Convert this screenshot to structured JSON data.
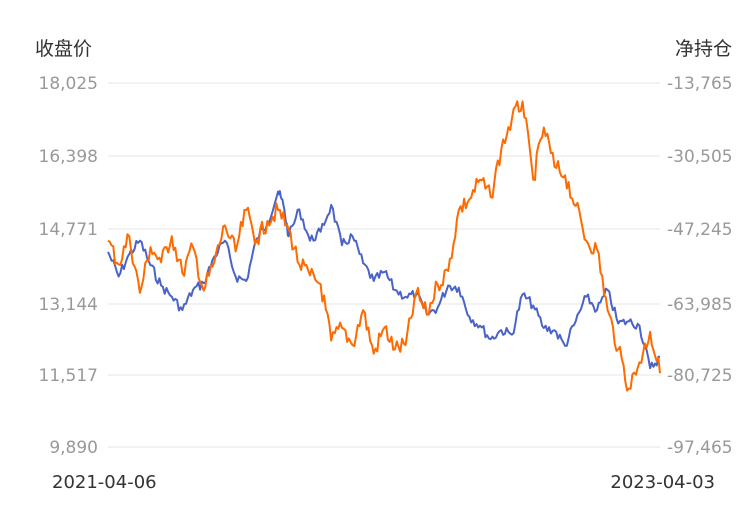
{
  "chart_data": {
    "type": "line",
    "left_axis": {
      "title": "收盘价",
      "ticks": [
        "18,025",
        "16,398",
        "14,771",
        "13,144",
        "11,517",
        "9,890"
      ],
      "range": [
        9890,
        18025
      ]
    },
    "right_axis": {
      "title": "净持仓",
      "ticks": [
        "-13,765",
        "-30,505",
        "-47,245",
        "-63,985",
        "-80,725",
        "-97,465"
      ],
      "range": [
        -97465,
        -13765
      ]
    },
    "x_axis": {
      "start_label": "2021-04-06",
      "end_label": "2023-04-03",
      "start": "2021-04-06",
      "end": "2023-04-03"
    },
    "grid": true,
    "series": [
      {
        "axis": "left",
        "color": "#4a63c8",
        "points": [
          [
            "2021-04-06",
            14250
          ],
          [
            "2021-04-20",
            13700
          ],
          [
            "2021-05-04",
            14200
          ],
          [
            "2021-05-18",
            14500
          ],
          [
            "2021-06-01",
            13950
          ],
          [
            "2021-06-15",
            13500
          ],
          [
            "2021-06-29",
            13250
          ],
          [
            "2021-07-13",
            12950
          ],
          [
            "2021-07-27",
            13400
          ],
          [
            "2021-08-10",
            13550
          ],
          [
            "2021-08-24",
            14150
          ],
          [
            "2021-09-07",
            14500
          ],
          [
            "2021-09-21",
            13700
          ],
          [
            "2021-10-05",
            13600
          ],
          [
            "2021-10-19",
            14550
          ],
          [
            "2021-11-02",
            14900
          ],
          [
            "2021-11-16",
            15600
          ],
          [
            "2021-11-23",
            15300
          ],
          [
            "2021-11-30",
            14600
          ],
          [
            "2021-12-14",
            15200
          ],
          [
            "2021-12-28",
            14500
          ],
          [
            "2022-01-11",
            14700
          ],
          [
            "2022-01-25",
            15300
          ],
          [
            "2022-02-08",
            14400
          ],
          [
            "2022-02-22",
            14600
          ],
          [
            "2022-03-08",
            14000
          ],
          [
            "2022-03-22",
            13600
          ],
          [
            "2022-04-05",
            13800
          ],
          [
            "2022-04-19",
            13400
          ],
          [
            "2022-05-03",
            13250
          ],
          [
            "2022-05-17",
            13300
          ],
          [
            "2022-05-31",
            12850
          ],
          [
            "2022-06-14",
            13000
          ],
          [
            "2022-06-28",
            13500
          ],
          [
            "2022-07-12",
            13450
          ],
          [
            "2022-07-26",
            12800
          ],
          [
            "2022-08-09",
            12600
          ],
          [
            "2022-08-23",
            12300
          ],
          [
            "2022-09-06",
            12500
          ],
          [
            "2022-09-20",
            12400
          ],
          [
            "2022-10-04",
            13300
          ],
          [
            "2022-10-18",
            13050
          ],
          [
            "2022-11-01",
            12550
          ],
          [
            "2022-11-15",
            12500
          ],
          [
            "2022-11-29",
            12150
          ],
          [
            "2022-12-13",
            12700
          ],
          [
            "2022-12-27",
            13250
          ],
          [
            "2023-01-10",
            12950
          ],
          [
            "2023-01-24",
            13400
          ],
          [
            "2023-02-07",
            12650
          ],
          [
            "2023-02-21",
            12700
          ],
          [
            "2023-03-07",
            12600
          ],
          [
            "2023-03-21",
            11650
          ],
          [
            "2023-04-03",
            11900
          ]
        ]
      },
      {
        "axis": "right",
        "color": "#ff6a00",
        "points": [
          [
            "2021-04-06",
            -50000
          ],
          [
            "2021-04-20",
            -55500
          ],
          [
            "2021-05-04",
            -49000
          ],
          [
            "2021-05-18",
            -62000
          ],
          [
            "2021-06-01",
            -51500
          ],
          [
            "2021-06-15",
            -55000
          ],
          [
            "2021-06-29",
            -49000
          ],
          [
            "2021-07-13",
            -57500
          ],
          [
            "2021-07-27",
            -51500
          ],
          [
            "2021-08-10",
            -61500
          ],
          [
            "2021-08-24",
            -55000
          ],
          [
            "2021-09-07",
            -46500
          ],
          [
            "2021-09-21",
            -52500
          ],
          [
            "2021-10-05",
            -43000
          ],
          [
            "2021-10-19",
            -50000
          ],
          [
            "2021-11-02",
            -45500
          ],
          [
            "2021-11-16",
            -43000
          ],
          [
            "2021-11-30",
            -47500
          ],
          [
            "2021-12-14",
            -55500
          ],
          [
            "2021-12-28",
            -58000
          ],
          [
            "2022-01-11",
            -60000
          ],
          [
            "2022-01-25",
            -73000
          ],
          [
            "2022-02-08",
            -70000
          ],
          [
            "2022-02-22",
            -74000
          ],
          [
            "2022-03-08",
            -66000
          ],
          [
            "2022-03-22",
            -76000
          ],
          [
            "2022-04-05",
            -70000
          ],
          [
            "2022-04-19",
            -75000
          ],
          [
            "2022-05-03",
            -74000
          ],
          [
            "2022-05-17",
            -62000
          ],
          [
            "2022-05-31",
            -67000
          ],
          [
            "2022-06-14",
            -60000
          ],
          [
            "2022-06-28",
            -57000
          ],
          [
            "2022-07-12",
            -43000
          ],
          [
            "2022-07-26",
            -40500
          ],
          [
            "2022-08-09",
            -36000
          ],
          [
            "2022-08-23",
            -40000
          ],
          [
            "2022-09-06",
            -29000
          ],
          [
            "2022-09-20",
            -22000
          ],
          [
            "2022-10-04",
            -18000
          ],
          [
            "2022-10-18",
            -36000
          ],
          [
            "2022-11-01",
            -24000
          ],
          [
            "2022-11-15",
            -33000
          ],
          [
            "2022-11-29",
            -35000
          ],
          [
            "2022-12-13",
            -42000
          ],
          [
            "2022-12-27",
            -50000
          ],
          [
            "2023-01-10",
            -52000
          ],
          [
            "2023-01-24",
            -66000
          ],
          [
            "2023-02-07",
            -75000
          ],
          [
            "2023-02-21",
            -84000
          ],
          [
            "2023-03-07",
            -78000
          ],
          [
            "2023-03-21",
            -71000
          ],
          [
            "2023-04-03",
            -80500
          ]
        ]
      }
    ]
  }
}
